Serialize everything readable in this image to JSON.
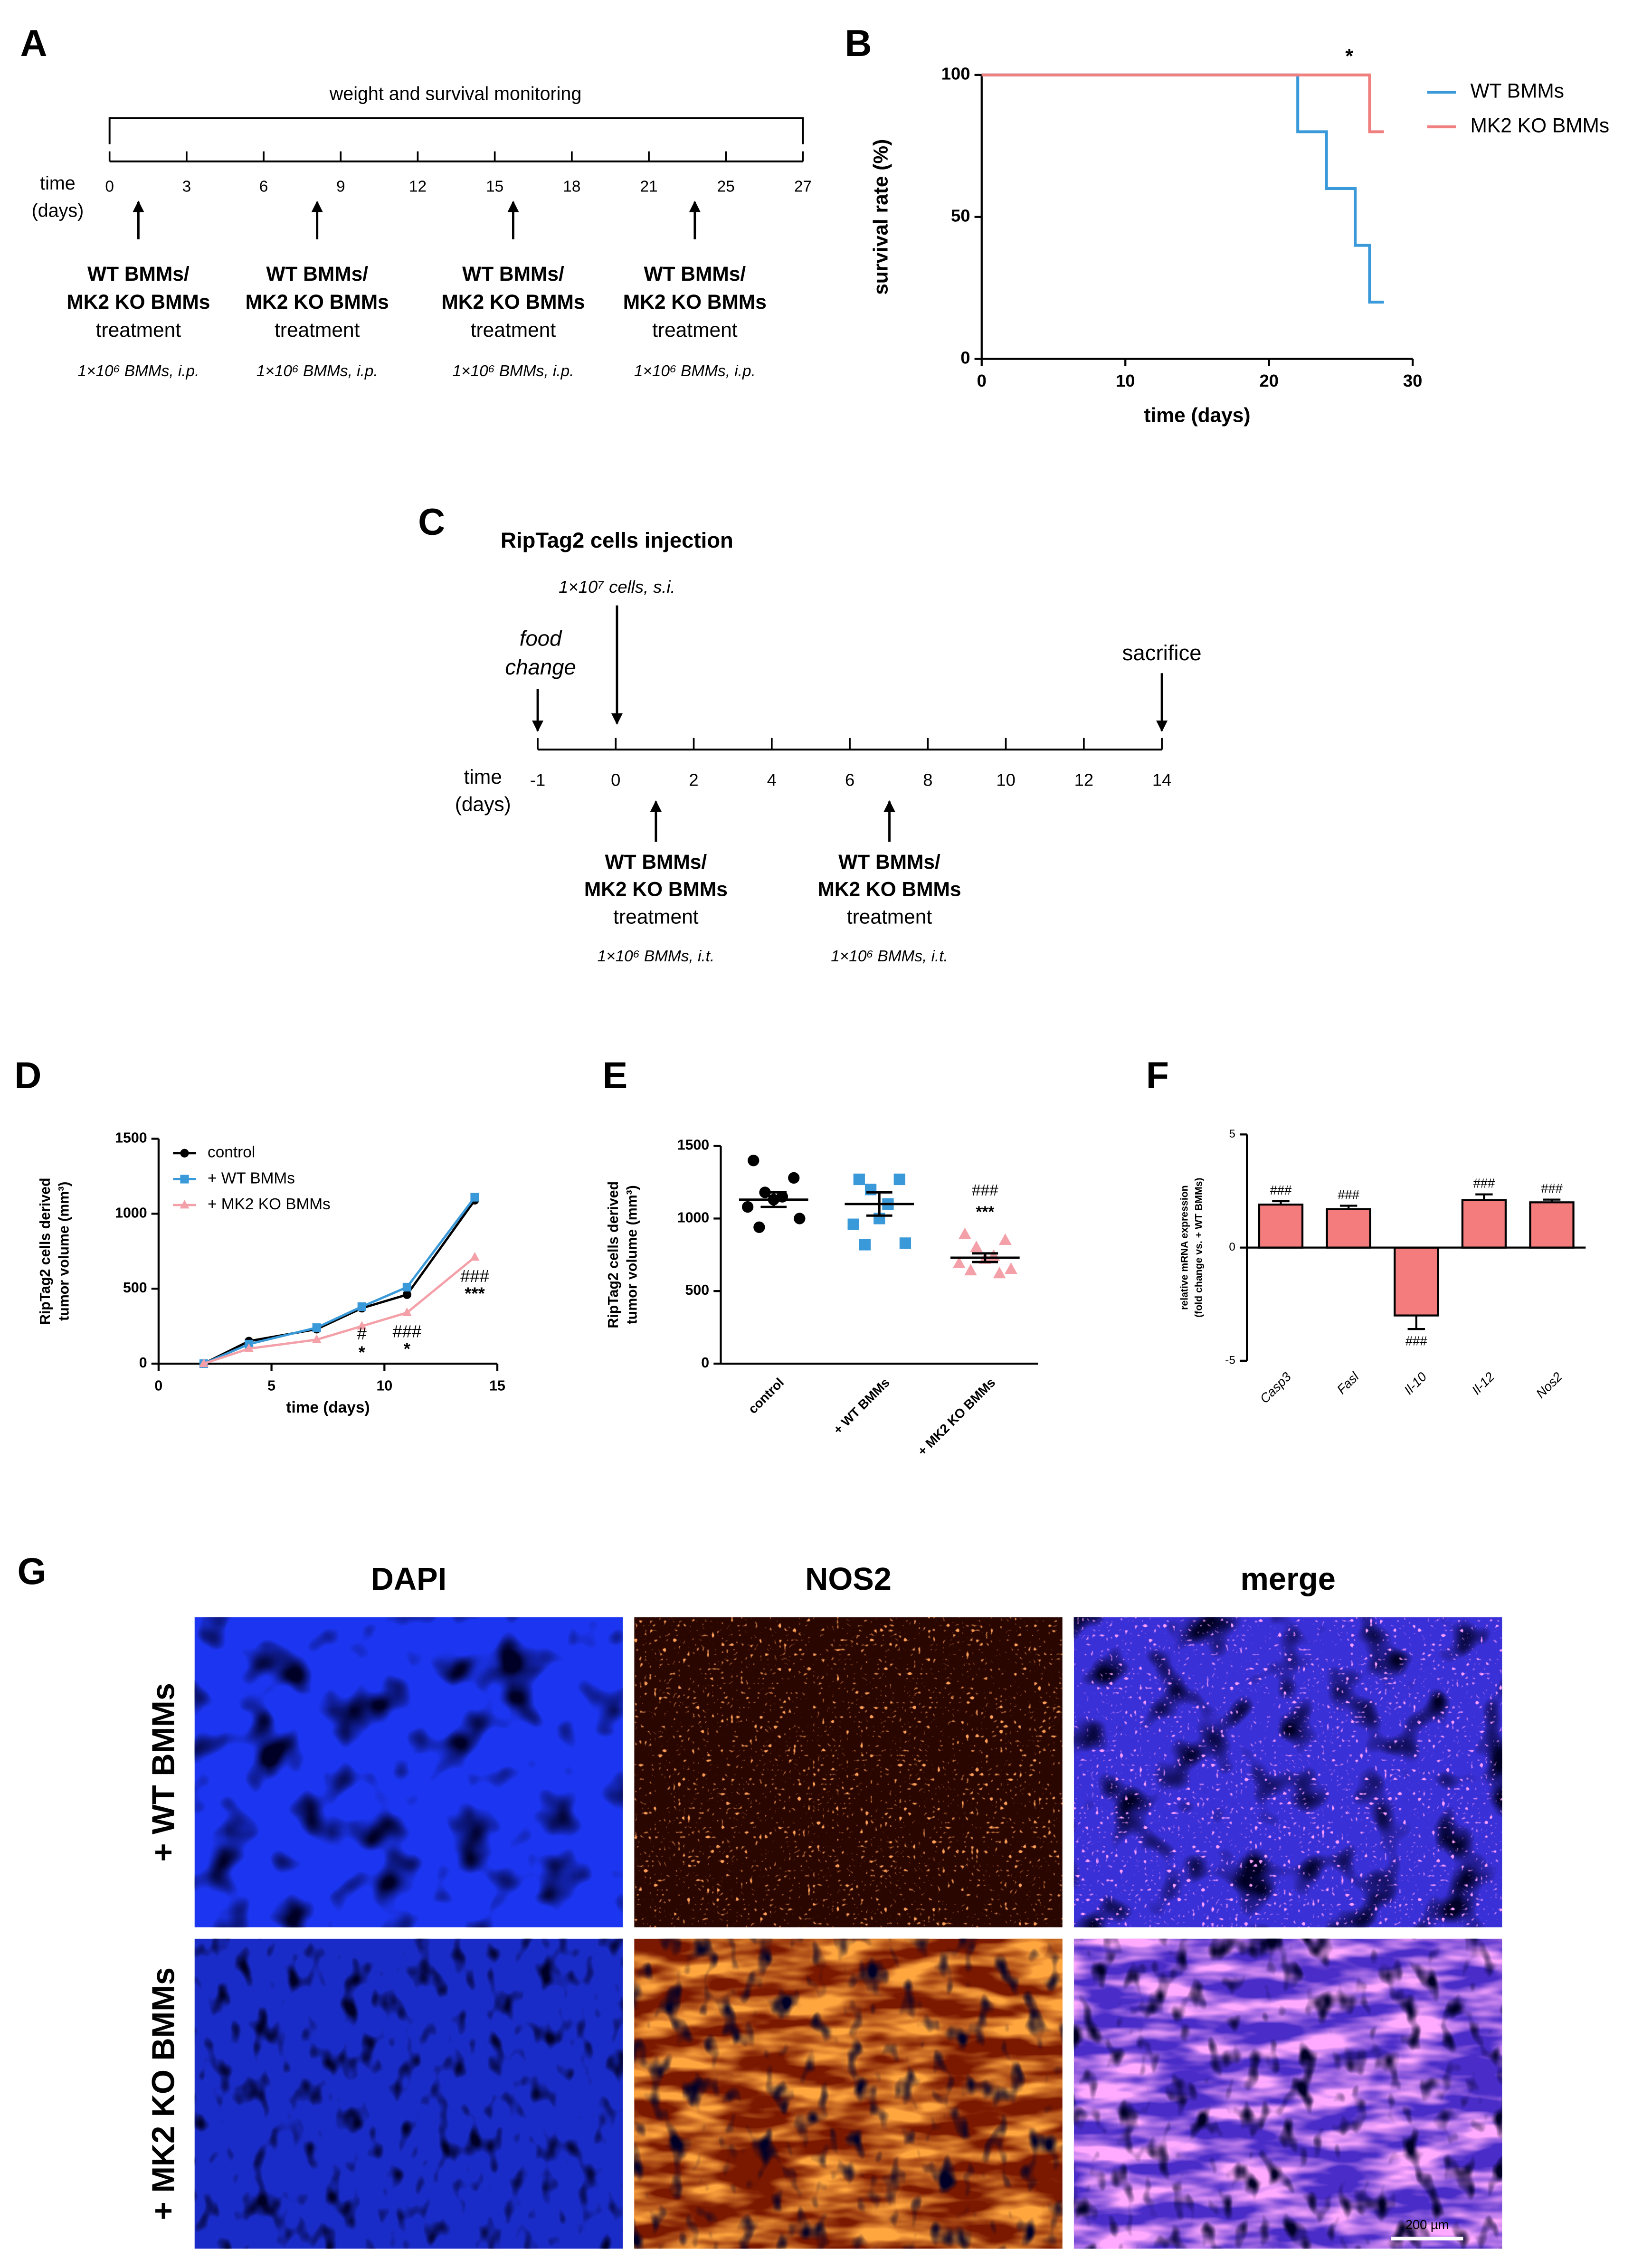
{
  "panel_labels": [
    "A",
    "B",
    "C",
    "D",
    "E",
    "F",
    "G"
  ],
  "timeline_a": {
    "title": "weight and survival monitoring",
    "axis_label": [
      "time",
      "(days)"
    ],
    "ticks": [
      0,
      3,
      6,
      9,
      12,
      15,
      18,
      21,
      25,
      27
    ],
    "treatments": [
      {
        "lines": [
          "WT BMMs/",
          "MK2 KO BMMs",
          "treatment"
        ],
        "dose": "1×10⁶ BMMs, i.p."
      },
      {
        "lines": [
          "WT BMMs/",
          "MK2 KO BMMs",
          "treatment"
        ],
        "dose": "1×10⁶ BMMs, i.p."
      },
      {
        "lines": [
          "WT BMMs/",
          "MK2 KO BMMs",
          "treatment"
        ],
        "dose": "1×10⁶ BMMs, i.p."
      },
      {
        "lines": [
          "WT BMMs/",
          "MK2 KO BMMs",
          "treatment"
        ],
        "dose": "1×10⁶ BMMs, i.p."
      }
    ]
  },
  "timeline_c": {
    "title": "RipTag2 cells injection",
    "injection_dose": "1×10⁷ cells, s.i.",
    "food_change": [
      "food",
      "change"
    ],
    "end_label": "sacrifice",
    "axis_label": [
      "time",
      "(days)"
    ],
    "ticks": [
      -1,
      0,
      2,
      4,
      6,
      8,
      10,
      12,
      14
    ],
    "treatments": [
      {
        "lines": [
          "WT BMMs/",
          "MK2 KO BMMs",
          "treatment"
        ],
        "dose": "1×10⁶ BMMs, i.t."
      },
      {
        "lines": [
          "WT BMMs/",
          "MK2 KO BMMs",
          "treatment"
        ],
        "dose": "1×10⁶ BMMs, i.t."
      }
    ]
  },
  "chart_data": [
    {
      "type": "step",
      "xlabel": "time (days)",
      "ylabel": [
        "survival rate (%)"
      ],
      "xlim": [
        0,
        30
      ],
      "xticks": [
        0,
        10,
        20,
        30
      ],
      "ylim": [
        0,
        100
      ],
      "yticks": [
        0,
        50,
        100
      ],
      "annotation": "*",
      "legend": "upper right",
      "series": [
        {
          "name": "WT BMMs",
          "color": "#3a9ad9",
          "x": [
            0,
            22,
            24,
            26,
            27,
            28
          ],
          "values": [
            100,
            80,
            60,
            40,
            20,
            20
          ]
        },
        {
          "name": "MK2 KO BMMs",
          "color": "#f08080",
          "x": [
            0,
            27,
            28
          ],
          "values": [
            100,
            80,
            80
          ]
        }
      ]
    },
    {
      "type": "line",
      "xlabel": "time (days)",
      "ylabel": [
        "RipTag2 cells derived",
        "tumor volume (mm³)"
      ],
      "xlim": [
        0,
        15
      ],
      "xticks": [
        0,
        5,
        10,
        15
      ],
      "ylim": [
        0,
        1500
      ],
      "yticks": [
        0,
        500,
        1000,
        1500
      ],
      "legend": "upper left",
      "x": [
        2,
        4,
        7,
        9,
        11,
        14
      ],
      "series": [
        {
          "name": "control",
          "color": "#000000",
          "marker": "circle",
          "values": [
            0,
            150,
            230,
            370,
            460,
            1090
          ]
        },
        {
          "name": "+ WT BMMs",
          "color": "#3a9ad9",
          "marker": "square",
          "values": [
            0,
            130,
            240,
            380,
            510,
            1110
          ]
        },
        {
          "name": "+ MK2 KO BMMs",
          "color": "#f4a0a8",
          "marker": "triangle",
          "values": [
            0,
            100,
            160,
            250,
            340,
            710
          ]
        }
      ],
      "hash_labels": [
        null,
        null,
        null,
        "#",
        "###",
        "###"
      ],
      "star_labels": [
        null,
        null,
        null,
        "*",
        "*",
        "***"
      ]
    },
    {
      "type": "strip",
      "ylabel": [
        "RipTag2 cells derived",
        "tumor volume (mm³)"
      ],
      "ylim": [
        0,
        1500
      ],
      "yticks": [
        0,
        500,
        1000,
        1500
      ],
      "categories": [
        "control",
        "+ WT BMMs",
        "+ MK2 KO BMMs"
      ],
      "series": [
        {
          "color": "#000000",
          "marker": "circle",
          "values": [
            1400,
            1280,
            1180,
            1150,
            1130,
            1080,
            1000,
            940
          ],
          "mean": 1130,
          "sem": 50
        },
        {
          "color": "#3a9ad9",
          "marker": "square",
          "values": [
            1270,
            1270,
            1200,
            1100,
            1000,
            960,
            830,
            820
          ],
          "mean": 1100,
          "sem": 80
        },
        {
          "color": "#f4a0a8",
          "marker": "triangle",
          "values": [
            890,
            850,
            800,
            740,
            720,
            690,
            650,
            640,
            620
          ],
          "mean": 730,
          "sem": 30
        }
      ],
      "hash_labels": [
        null,
        null,
        "###"
      ],
      "star_labels": [
        null,
        null,
        "***"
      ]
    },
    {
      "type": "bar",
      "ylabel": [
        "relative mRNA expression",
        "(fold change vs. + WT BMMs)"
      ],
      "ylim": [
        -5,
        5
      ],
      "yticks": [
        -5,
        0,
        5
      ],
      "color": "#f47c7c",
      "categories": [
        "Casp3",
        "Fasl",
        "Il-10",
        "Il-12",
        "Nos2"
      ],
      "values": [
        1.9,
        1.7,
        -3.0,
        2.1,
        2.0
      ],
      "errors": [
        0.15,
        0.15,
        0.6,
        0.25,
        0.12
      ],
      "hash_labels": [
        "###",
        "###",
        "###",
        "###",
        "###"
      ]
    }
  ],
  "micrographs": {
    "columns": [
      {
        "name": "DAPI",
        "color": "#1f3a93"
      },
      {
        "name": "NOS2",
        "color": "#e02020"
      },
      {
        "name": "merge",
        "color": "#111111"
      }
    ],
    "rows": [
      "+ WT BMMs",
      "+ MK2 KO BMMs"
    ],
    "scale_bar": "200 µm"
  }
}
